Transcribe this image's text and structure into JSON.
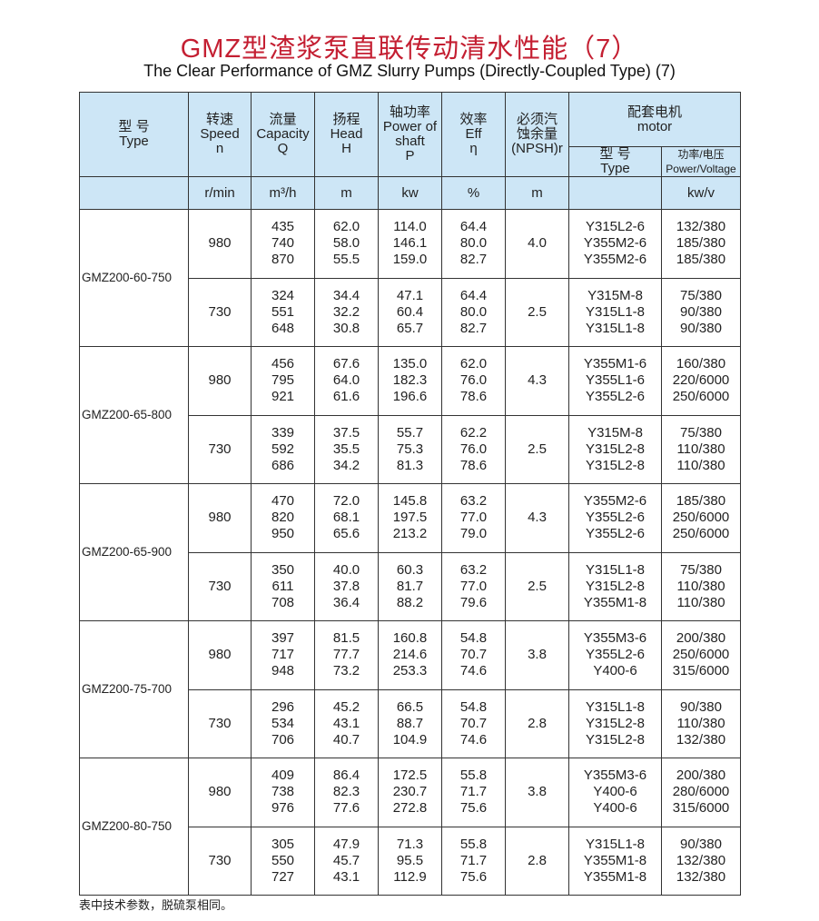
{
  "title": "GMZ型渣浆泵直联传动清水性能（7）",
  "subtitle": "The Clear Performance of GMZ Slurry Pumps (Directly-Coupled Type) (7)",
  "header": {
    "type": [
      "型 号",
      "Type"
    ],
    "speed": [
      "转速",
      "Speed",
      "n"
    ],
    "capacity": [
      "流量",
      "Capacity",
      "Q"
    ],
    "head": [
      "扬程",
      "Head",
      "H"
    ],
    "power": [
      "轴功率",
      "Power of",
      "shaft",
      "P"
    ],
    "eff": [
      "效率",
      "Eff",
      "η"
    ],
    "npsh": [
      "必须汽",
      "蚀余量",
      "(NPSH)r"
    ],
    "motor": [
      "配套电机",
      "motor"
    ],
    "motor_type": [
      "型 号",
      "Type"
    ],
    "motor_power": [
      "功率/电压",
      "Power/Voltage"
    ],
    "units": {
      "speed": "r/min",
      "capacity": "m³/h",
      "head": "m",
      "power": "kw",
      "eff": "%",
      "npsh": "m",
      "motor_type": "",
      "motor_power": "kw/v"
    }
  },
  "groups": [
    {
      "type": "GMZ200-60-750",
      "speeds": [
        {
          "n": "980",
          "npsh": "4.0",
          "q": [
            "435",
            "740",
            "870"
          ],
          "h": [
            "62.0",
            "58.0",
            "55.5"
          ],
          "p": [
            "114.0",
            "146.1",
            "159.0"
          ],
          "eff": [
            "64.4",
            "80.0",
            "82.7"
          ],
          "motor": [
            "Y315L2-6",
            "Y355M2-6",
            "Y355M2-6"
          ],
          "pv": [
            "132/380",
            "185/380",
            "185/380"
          ]
        },
        {
          "n": "730",
          "npsh": "2.5",
          "q": [
            "324",
            "551",
            "648"
          ],
          "h": [
            "34.4",
            "32.2",
            "30.8"
          ],
          "p": [
            "47.1",
            "60.4",
            "65.7"
          ],
          "eff": [
            "64.4",
            "80.0",
            "82.7"
          ],
          "motor": [
            "Y315M-8",
            "Y315L1-8",
            "Y315L1-8"
          ],
          "pv": [
            "75/380",
            "90/380",
            "90/380"
          ]
        }
      ]
    },
    {
      "type": "GMZ200-65-800",
      "speeds": [
        {
          "n": "980",
          "npsh": "4.3",
          "q": [
            "456",
            "795",
            "921"
          ],
          "h": [
            "67.6",
            "64.0",
            "61.6"
          ],
          "p": [
            "135.0",
            "182.3",
            "196.6"
          ],
          "eff": [
            "62.0",
            "76.0",
            "78.6"
          ],
          "motor": [
            "Y355M1-6",
            "Y355L1-6",
            "Y355L2-6"
          ],
          "pv": [
            "160/380",
            "220/6000",
            "250/6000"
          ]
        },
        {
          "n": "730",
          "npsh": "2.5",
          "q": [
            "339",
            "592",
            "686"
          ],
          "h": [
            "37.5",
            "35.5",
            "34.2"
          ],
          "p": [
            "55.7",
            "75.3",
            "81.3"
          ],
          "eff": [
            "62.2",
            "76.0",
            "78.6"
          ],
          "motor": [
            "Y315M-8",
            "Y315L2-8",
            "Y315L2-8"
          ],
          "pv": [
            "75/380",
            "110/380",
            "110/380"
          ]
        }
      ]
    },
    {
      "type": "GMZ200-65-900",
      "speeds": [
        {
          "n": "980",
          "npsh": "4.3",
          "q": [
            "470",
            "820",
            "950"
          ],
          "h": [
            "72.0",
            "68.1",
            "65.6"
          ],
          "p": [
            "145.8",
            "197.5",
            "213.2"
          ],
          "eff": [
            "63.2",
            "77.0",
            "79.0"
          ],
          "motor": [
            "Y355M2-6",
            "Y355L2-6",
            "Y355L2-6"
          ],
          "pv": [
            "185/380",
            "250/6000",
            "250/6000"
          ]
        },
        {
          "n": "730",
          "npsh": "2.5",
          "q": [
            "350",
            "611",
            "708"
          ],
          "h": [
            "40.0",
            "37.8",
            "36.4"
          ],
          "p": [
            "60.3",
            "81.7",
            "88.2"
          ],
          "eff": [
            "63.2",
            "77.0",
            "79.6"
          ],
          "motor": [
            "Y315L1-8",
            "Y315L2-8",
            "Y355M1-8"
          ],
          "pv": [
            "75/380",
            "110/380",
            "110/380"
          ]
        }
      ]
    },
    {
      "type": "GMZ200-75-700",
      "speeds": [
        {
          "n": "980",
          "npsh": "3.8",
          "q": [
            "397",
            "717",
            "948"
          ],
          "h": [
            "81.5",
            "77.7",
            "73.2"
          ],
          "p": [
            "160.8",
            "214.6",
            "253.3"
          ],
          "eff": [
            "54.8",
            "70.7",
            "74.6"
          ],
          "motor": [
            "Y355M3-6",
            "Y355L2-6",
            "Y400-6"
          ],
          "pv": [
            "200/380",
            "250/6000",
            "315/6000"
          ]
        },
        {
          "n": "730",
          "npsh": "2.8",
          "q": [
            "296",
            "534",
            "706"
          ],
          "h": [
            "45.2",
            "43.1",
            "40.7"
          ],
          "p": [
            "66.5",
            "88.7",
            "104.9"
          ],
          "eff": [
            "54.8",
            "70.7",
            "74.6"
          ],
          "motor": [
            "Y315L1-8",
            "Y315L2-8",
            "Y315L2-8"
          ],
          "pv": [
            "90/380",
            "110/380",
            "132/380"
          ]
        }
      ]
    },
    {
      "type": "GMZ200-80-750",
      "speeds": [
        {
          "n": "980",
          "npsh": "3.8",
          "q": [
            "409",
            "738",
            "976"
          ],
          "h": [
            "86.4",
            "82.3",
            "77.6"
          ],
          "p": [
            "172.5",
            "230.7",
            "272.8"
          ],
          "eff": [
            "55.8",
            "71.7",
            "75.6"
          ],
          "motor": [
            "Y355M3-6",
            "Y400-6",
            "Y400-6"
          ],
          "pv": [
            "200/380",
            "280/6000",
            "315/6000"
          ]
        },
        {
          "n": "730",
          "npsh": "2.8",
          "q": [
            "305",
            "550",
            "727"
          ],
          "h": [
            "47.9",
            "45.7",
            "43.1"
          ],
          "p": [
            "71.3",
            "95.5",
            "112.9"
          ],
          "eff": [
            "55.8",
            "71.7",
            "75.6"
          ],
          "motor": [
            "Y315L1-8",
            "Y355M1-8",
            "Y355M1-8"
          ],
          "pv": [
            "90/380",
            "132/380",
            "132/380"
          ]
        }
      ]
    }
  ],
  "note": "表中技术参数，脱硫泵相同。",
  "colors": {
    "title": "#c41f32",
    "header_bg": "#cde6f6"
  }
}
